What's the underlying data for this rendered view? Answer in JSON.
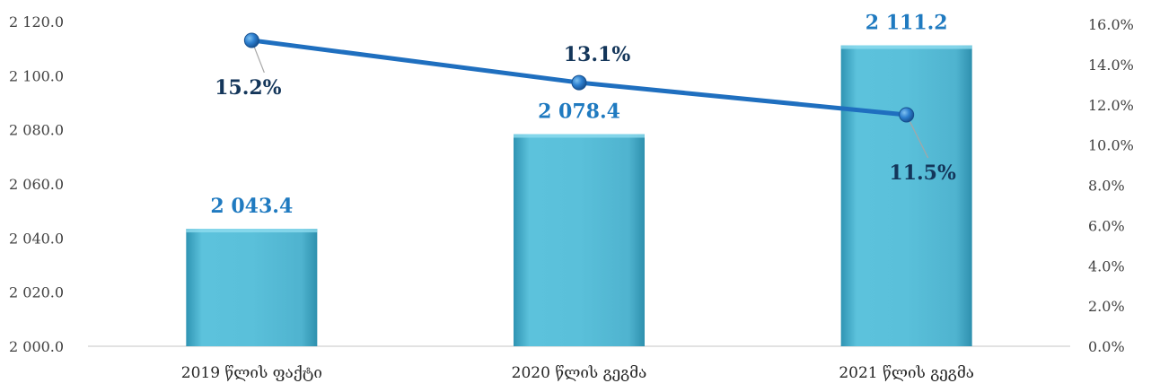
{
  "chart_data": {
    "type": "bar",
    "categories": [
      "2019 წლის ფაქტი",
      "2020 წლის გეგმა",
      "2021 წლის გეგმა"
    ],
    "series": [
      {
        "type": "bar",
        "axis": "left",
        "values": [
          2043.4,
          2078.4,
          2111.2
        ],
        "labels": [
          "2 043.4",
          "2 078.4",
          "2 111.2"
        ],
        "color": "#57b9d4"
      },
      {
        "type": "line",
        "axis": "right",
        "values": [
          15.2,
          13.1,
          11.5
        ],
        "labels": [
          "15.2%",
          "13.1%",
          "11.5%"
        ],
        "color": "#1f6fbf"
      }
    ],
    "y_left": {
      "range": [
        2000,
        2120
      ],
      "ticks": [
        2000,
        2020,
        2040,
        2060,
        2080,
        2100,
        2120
      ],
      "tick_labels": [
        "2 000.0",
        "2 020.0",
        "2 040.0",
        "2 060.0",
        "2 080.0",
        "2 100.0",
        "2 120.0"
      ]
    },
    "y_right": {
      "range": [
        0,
        16
      ],
      "ticks": [
        0,
        2,
        4,
        6,
        8,
        10,
        12,
        14,
        16
      ],
      "tick_labels": [
        "0.0%",
        "2.0%",
        "4.0%",
        "6.0%",
        "8.0%",
        "10.0%",
        "12.0%",
        "14.0%",
        "16.0%"
      ]
    },
    "title": "",
    "xlabel": "",
    "ylabel": "",
    "grid": false,
    "legend": "none"
  }
}
